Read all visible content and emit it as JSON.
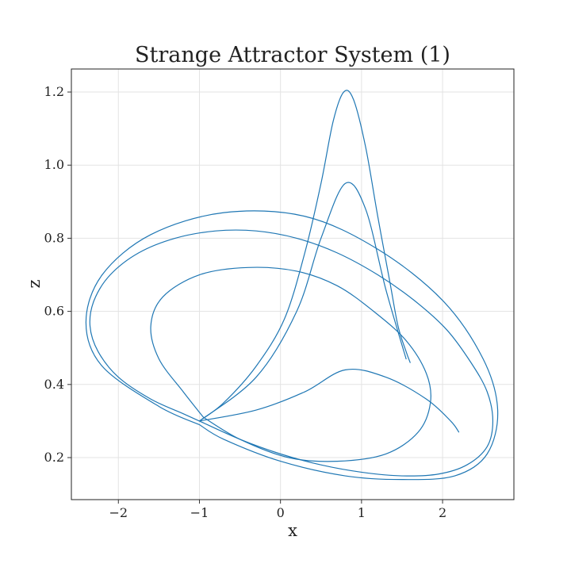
{
  "chart_data": {
    "type": "line",
    "title": "Strange Attractor System (1)",
    "xlabel": "x",
    "ylabel": "z",
    "xlim": [
      -2.58,
      2.88
    ],
    "ylim": [
      0.085,
      1.263
    ],
    "xticks": [
      -2,
      -1,
      0,
      1,
      2
    ],
    "xtick_labels": [
      "−2",
      "−1",
      "0",
      "1",
      "2"
    ],
    "yticks": [
      0.2,
      0.4,
      0.6,
      0.8,
      1.0,
      1.2
    ],
    "ytick_labels": [
      "0.2",
      "0.4",
      "0.6",
      "0.8",
      "1.0",
      "1.2"
    ],
    "grid": true,
    "legend": "none",
    "line_color": "#1f77b4",
    "series": [
      {
        "x": [
          -1.0,
          -1.2,
          -1.6,
          -2.0,
          -2.25,
          -2.35,
          -2.3,
          -2.1,
          -1.75,
          -1.3,
          -0.8,
          -0.3,
          0.2,
          0.7,
          1.2,
          1.65,
          2.05,
          2.35,
          2.55,
          2.62,
          2.55,
          2.3,
          1.95,
          1.5,
          1.0,
          0.5,
          0.0,
          -0.5,
          -1.0
        ],
        "y": [
          0.3,
          0.32,
          0.36,
          0.42,
          0.49,
          0.56,
          0.63,
          0.7,
          0.76,
          0.8,
          0.82,
          0.82,
          0.8,
          0.76,
          0.7,
          0.63,
          0.55,
          0.46,
          0.38,
          0.3,
          0.23,
          0.18,
          0.155,
          0.15,
          0.16,
          0.18,
          0.21,
          0.25,
          0.3
        ]
      },
      {
        "x": [
          -1.0,
          -1.5,
          -2.2,
          -2.4,
          -2.2,
          -1.6,
          -0.7,
          0.3,
          1.2,
          2.0,
          2.5,
          2.68,
          2.55,
          2.15,
          1.5,
          0.8,
          0.0,
          -0.7,
          -1.0
        ],
        "y": [
          0.29,
          0.34,
          0.45,
          0.57,
          0.7,
          0.81,
          0.87,
          0.86,
          0.77,
          0.63,
          0.47,
          0.33,
          0.21,
          0.15,
          0.14,
          0.15,
          0.19,
          0.25,
          0.29
        ]
      },
      {
        "x": [
          -0.95,
          -1.2,
          -1.5,
          -1.6,
          -1.45,
          -1.0,
          -0.4,
          0.2,
          0.7,
          1.15,
          1.55,
          1.8,
          1.85,
          1.7,
          1.3,
          0.7,
          0.1,
          -0.5,
          -0.95
        ],
        "y": [
          0.31,
          0.38,
          0.47,
          0.56,
          0.64,
          0.7,
          0.72,
          0.71,
          0.67,
          0.6,
          0.52,
          0.43,
          0.35,
          0.27,
          0.21,
          0.19,
          0.2,
          0.25,
          0.31
        ]
      },
      {
        "x": [
          -1.0,
          -0.7,
          -0.3,
          0.05,
          0.3,
          0.5,
          0.65,
          0.78,
          0.9,
          1.05,
          1.2,
          1.35,
          1.45,
          1.55,
          1.6
        ],
        "y": [
          0.3,
          0.35,
          0.45,
          0.58,
          0.76,
          0.95,
          1.12,
          1.2,
          1.18,
          1.05,
          0.86,
          0.68,
          0.56,
          0.49,
          0.46
        ]
      },
      {
        "x": [
          -1.0,
          -0.3,
          0.2,
          0.5,
          0.8,
          1.05,
          1.3,
          1.55
        ],
        "y": [
          0.3,
          0.42,
          0.6,
          0.8,
          0.95,
          0.88,
          0.66,
          0.47
        ]
      },
      {
        "x": [
          -1.0,
          -0.3,
          0.3,
          0.8,
          1.3,
          1.8,
          2.1,
          2.2
        ],
        "y": [
          0.3,
          0.33,
          0.38,
          0.44,
          0.42,
          0.36,
          0.3,
          0.27
        ]
      }
    ]
  }
}
